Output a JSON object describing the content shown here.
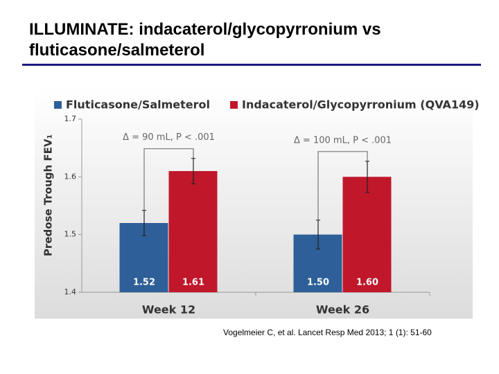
{
  "slide": {
    "title": "ILLUMINATE: indacaterol/glycopyrronium vs fluticasone/salmeterol",
    "citation": "Vogelmeier C, et al. Lancet Resp Med 2013; 1 (1): 51-60"
  },
  "chart_data": {
    "type": "bar",
    "categories": [
      "Week 12",
      "Week 26"
    ],
    "series": [
      {
        "name": "Fluticasone/Salmeterol",
        "color": "#2e5f98",
        "values": [
          1.52,
          1.5
        ],
        "value_labels": [
          "1.52",
          "1.50"
        ],
        "errors": [
          0.022,
          0.025
        ]
      },
      {
        "name": "Indacaterol/Glycopyrronium (QVA149)",
        "color": "#c0172b",
        "values": [
          1.61,
          1.6
        ],
        "value_labels": [
          "1.61",
          "1.60"
        ],
        "errors": [
          0.022,
          0.027
        ]
      }
    ],
    "ylabel": "Predose Trough FEV₁",
    "ylim": [
      1.4,
      1.7
    ],
    "yticks": [
      1.4,
      1.5,
      1.6,
      1.7
    ],
    "annotations": [
      "Δ = 90 mL, P < .001",
      "Δ = 100 mL, P < .001"
    ]
  }
}
